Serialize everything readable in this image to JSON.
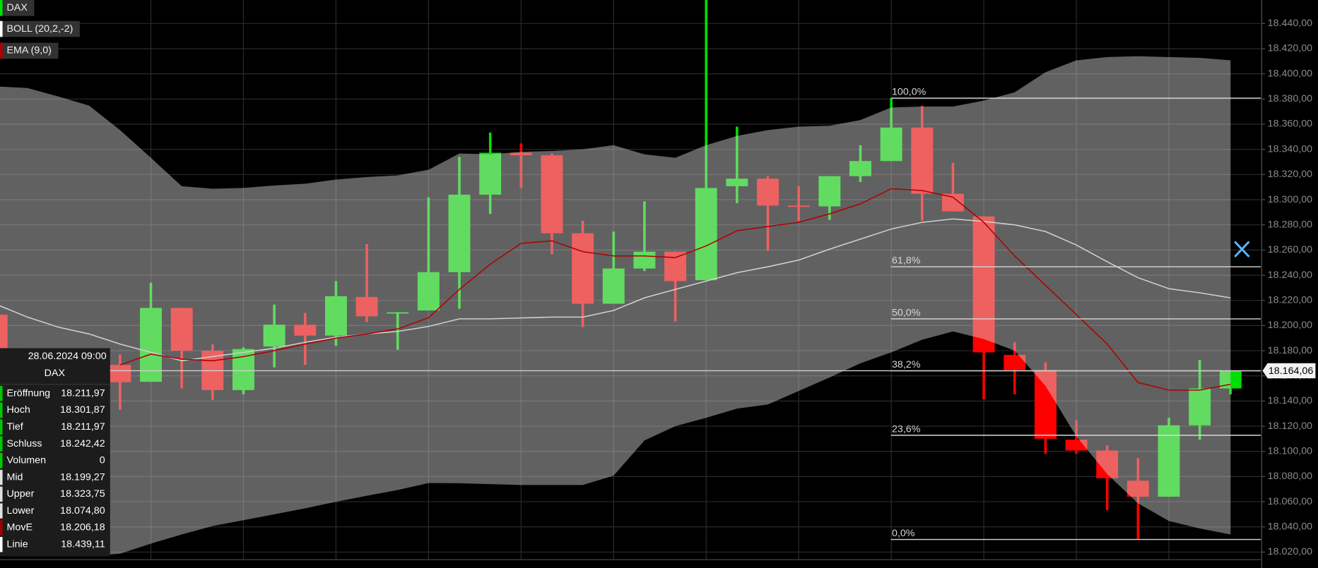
{
  "chart_data": {
    "type": "candlestick",
    "ylim": [
      18014,
      18458.67
    ],
    "yticks": [
      {
        "value": 18020,
        "label": "18.020,00"
      },
      {
        "value": 18040,
        "label": "18.040,00"
      },
      {
        "value": 18060,
        "label": "18.060,00"
      },
      {
        "value": 18080,
        "label": "18.080,00"
      },
      {
        "value": 18100,
        "label": "18.100,00"
      },
      {
        "value": 18120,
        "label": "18.120,00"
      },
      {
        "value": 18140,
        "label": "18.140,00"
      },
      {
        "value": 18160,
        "label": "18.160,00"
      },
      {
        "value": 18180,
        "label": "18.180,00"
      },
      {
        "value": 18200,
        "label": "18.200,00"
      },
      {
        "value": 18220,
        "label": "18.220,00"
      },
      {
        "value": 18240,
        "label": "18.240,00"
      },
      {
        "value": 18260,
        "label": "18.260,00"
      },
      {
        "value": 18280,
        "label": "18.280,00"
      },
      {
        "value": 18300,
        "label": "18.300,00"
      },
      {
        "value": 18320,
        "label": "18.320,00"
      },
      {
        "value": 18340,
        "label": "18.340,00"
      },
      {
        "value": 18360,
        "label": "18.360,00"
      },
      {
        "value": 18380,
        "label": "18.380,00"
      },
      {
        "value": 18400,
        "label": "18.400,00"
      },
      {
        "value": 18420,
        "label": "18.420,00"
      },
      {
        "value": 18440,
        "label": "18.440,00"
      }
    ],
    "grid": true,
    "series": [
      {
        "name": "DAX",
        "color": "#00e000",
        "down_color": "#ff0000",
        "open": [
          18208.7,
          null,
          null,
          null,
          18168.7,
          18155.3,
          18214.0,
          18180.0,
          18148.7,
          18183.3,
          18200.7,
          18192.0,
          18222.7,
          18210.0,
          18211.97,
          18242.4,
          18304.0,
          18337.3,
          18335.3,
          18273.3,
          18217.3,
          18245.3,
          18258.7,
          18236.0,
          18310.7,
          18316.7,
          18295.3,
          18294.7,
          18318.7,
          18330.7,
          18357.3,
          18304.7,
          18286.7,
          18176.7,
          18164.7,
          18109.3,
          18100.7,
          18076.7,
          18064.0,
          18120.7,
          18150.0
        ],
        "high": [
          18212.0,
          null,
          null,
          null,
          18177.0,
          18234.0,
          18214.0,
          18185.0,
          18182.7,
          18216.7,
          18210.0,
          18235.3,
          18264.7,
          18210.7,
          18301.87,
          18334.0,
          18353.3,
          18344.7,
          18336.7,
          18283.3,
          18274.7,
          18298.7,
          18258.7,
          18460.0,
          18358.0,
          18318.7,
          18310.7,
          18318.7,
          18343.3,
          18380.7,
          18374.7,
          18329.3,
          18286.7,
          18186.7,
          18170.7,
          18124.7,
          18104.7,
          18094.7,
          18126.7,
          18172.7,
          18164.06
        ],
        "low": [
          18178.7,
          null,
          null,
          null,
          18133.0,
          18155.3,
          18150.0,
          18141.0,
          18145.3,
          18166.7,
          18168.7,
          18184.0,
          18202.7,
          18180.7,
          18211.97,
          18213.3,
          18288.7,
          18309.3,
          18256.7,
          18198.7,
          18217.3,
          18243.3,
          18203.3,
          18236.0,
          18297.3,
          18259.3,
          18283.3,
          18284.0,
          18314.0,
          18330.7,
          18283.3,
          18290.7,
          18141.3,
          18145.3,
          18098.0,
          18098.0,
          18053.3,
          18030.0,
          18064.0,
          18109.3,
          18145.3
        ],
        "close": [
          18182.0,
          null,
          null,
          null,
          18155.0,
          18214.0,
          18180.0,
          18148.7,
          18181.3,
          18200.7,
          18192.0,
          18223.3,
          18207.3,
          18210.5,
          18242.42,
          18304.0,
          18337.3,
          18335.3,
          18273.3,
          18217.3,
          18245.3,
          18258.7,
          18235.3,
          18309.3,
          18316.7,
          18295.3,
          18294.7,
          18318.7,
          18330.7,
          18357.3,
          18304.7,
          18290.7,
          18178.7,
          18164.7,
          18110.0,
          18100.7,
          18078.7,
          18064.0,
          18120.7,
          18150.0,
          18164.06
        ]
      },
      {
        "name": "BOLL (20,2,-2)",
        "color": "#ffffff",
        "mid_color": "#d0d0d0",
        "band_color": "#d8d8d8",
        "upper": [
          18390.0,
          18388.7,
          18382.0,
          18374.7,
          18355.3,
          18333.3,
          18310.7,
          18308.7,
          18309.3,
          18311.3,
          18312.7,
          18316.0,
          18318.0,
          18319.3,
          18323.75,
          18336.7,
          18336.0,
          18338.0,
          18338.7,
          18340.0,
          18343.3,
          18336.0,
          18333.3,
          18343.3,
          18350.7,
          18355.3,
          18358.0,
          18358.7,
          18363.3,
          18373.3,
          18374.0,
          18374.0,
          18378.7,
          18385.3,
          18401.3,
          18410.7,
          18413.3,
          18414.0,
          18413.3,
          18412.7,
          18410.7
        ],
        "mid": [
          18216.7,
          18206.7,
          18198.7,
          18193.3,
          18185.3,
          18178.7,
          18172.0,
          18175.3,
          18178.7,
          18182.0,
          18186.7,
          18190.7,
          18193.3,
          18195.3,
          18199.27,
          18205.3,
          18205.3,
          18206.0,
          18206.7,
          18206.7,
          18212.0,
          18222.0,
          18228.7,
          18235.3,
          18242.0,
          18246.7,
          18252.0,
          18260.7,
          18268.7,
          18276.7,
          18282.0,
          18284.7,
          18282.7,
          18280.0,
          18274.7,
          18264.0,
          18250.7,
          18238.0,
          18229.3,
          18226.0,
          18222.0
        ],
        "lower": [
          18020.7,
          18018.7,
          18017.3,
          18016.7,
          18018.7,
          18026.7,
          18034.0,
          18040.7,
          18045.3,
          18050.0,
          18054.7,
          18060.0,
          18064.7,
          18069.3,
          18074.8,
          18074.7,
          18074.0,
          18073.3,
          18073.3,
          18073.3,
          18080.7,
          18108.7,
          18120.0,
          18126.7,
          18134.0,
          18137.3,
          18148.0,
          18158.7,
          18170.0,
          18178.7,
          18188.7,
          18195.3,
          18189.3,
          18180.0,
          18152.0,
          18112.0,
          18082.0,
          18058.7,
          18044.7,
          18038.7,
          18034.0
        ]
      },
      {
        "name": "EMA (9,0)",
        "color": "#b00000",
        "values": [
          null,
          null,
          null,
          null,
          18168.7,
          18177.3,
          18173.3,
          18172.0,
          18175.3,
          18180.0,
          18185.3,
          18190.0,
          18193.3,
          18197.3,
          18206.18,
          18228.7,
          18248.7,
          18265.3,
          18267.3,
          18258.7,
          18255.3,
          18255.3,
          18254.0,
          18263.3,
          18275.3,
          18278.7,
          18282.0,
          18288.7,
          18296.7,
          18308.7,
          18307.3,
          18302.0,
          18282.0,
          18255.3,
          18232.0,
          18208.7,
          18185.3,
          18154.7,
          18148.7,
          18148.7,
          18153.3
        ]
      }
    ],
    "fibonacci": [
      {
        "label": "100,0%",
        "value": 18380.7
      },
      {
        "label": "61,8%",
        "value": 18246.7
      },
      {
        "label": "50,0%",
        "value": 18205.3
      },
      {
        "label": "38,2%",
        "value": 18164.0
      },
      {
        "label": "23,6%",
        "value": 18112.8
      },
      {
        "label": "0,0%",
        "value": 18030.0
      }
    ],
    "last_price": {
      "value": 18164.06,
      "label": "18.164,06"
    },
    "tooltip": {
      "title": "28.06.2024 09:00",
      "symbol": "DAX",
      "rows": [
        {
          "label": "Eröffnung",
          "value": "18.211,97",
          "color": "#00c800"
        },
        {
          "label": "Hoch",
          "value": "18.301,87",
          "color": "#00c800"
        },
        {
          "label": "Tief",
          "value": "18.211,97",
          "color": "#00c800"
        },
        {
          "label": "Schluss",
          "value": "18.242,42",
          "color": "#00c800"
        },
        {
          "label": "Volumen",
          "value": "0",
          "color": "#00c800"
        },
        {
          "label": "Mid",
          "value": "18.199,27",
          "color": "#e0e0e0"
        },
        {
          "label": "Upper",
          "value": "18.323,75",
          "color": "#e0e0e0"
        },
        {
          "label": "Lower",
          "value": "18.074,80",
          "color": "#e0e0e0"
        },
        {
          "label": "MovE",
          "value": "18.206,18",
          "color": "#a00000"
        },
        {
          "label": "Linie",
          "value": "18.439,11",
          "color": "#ffffff"
        }
      ]
    }
  }
}
